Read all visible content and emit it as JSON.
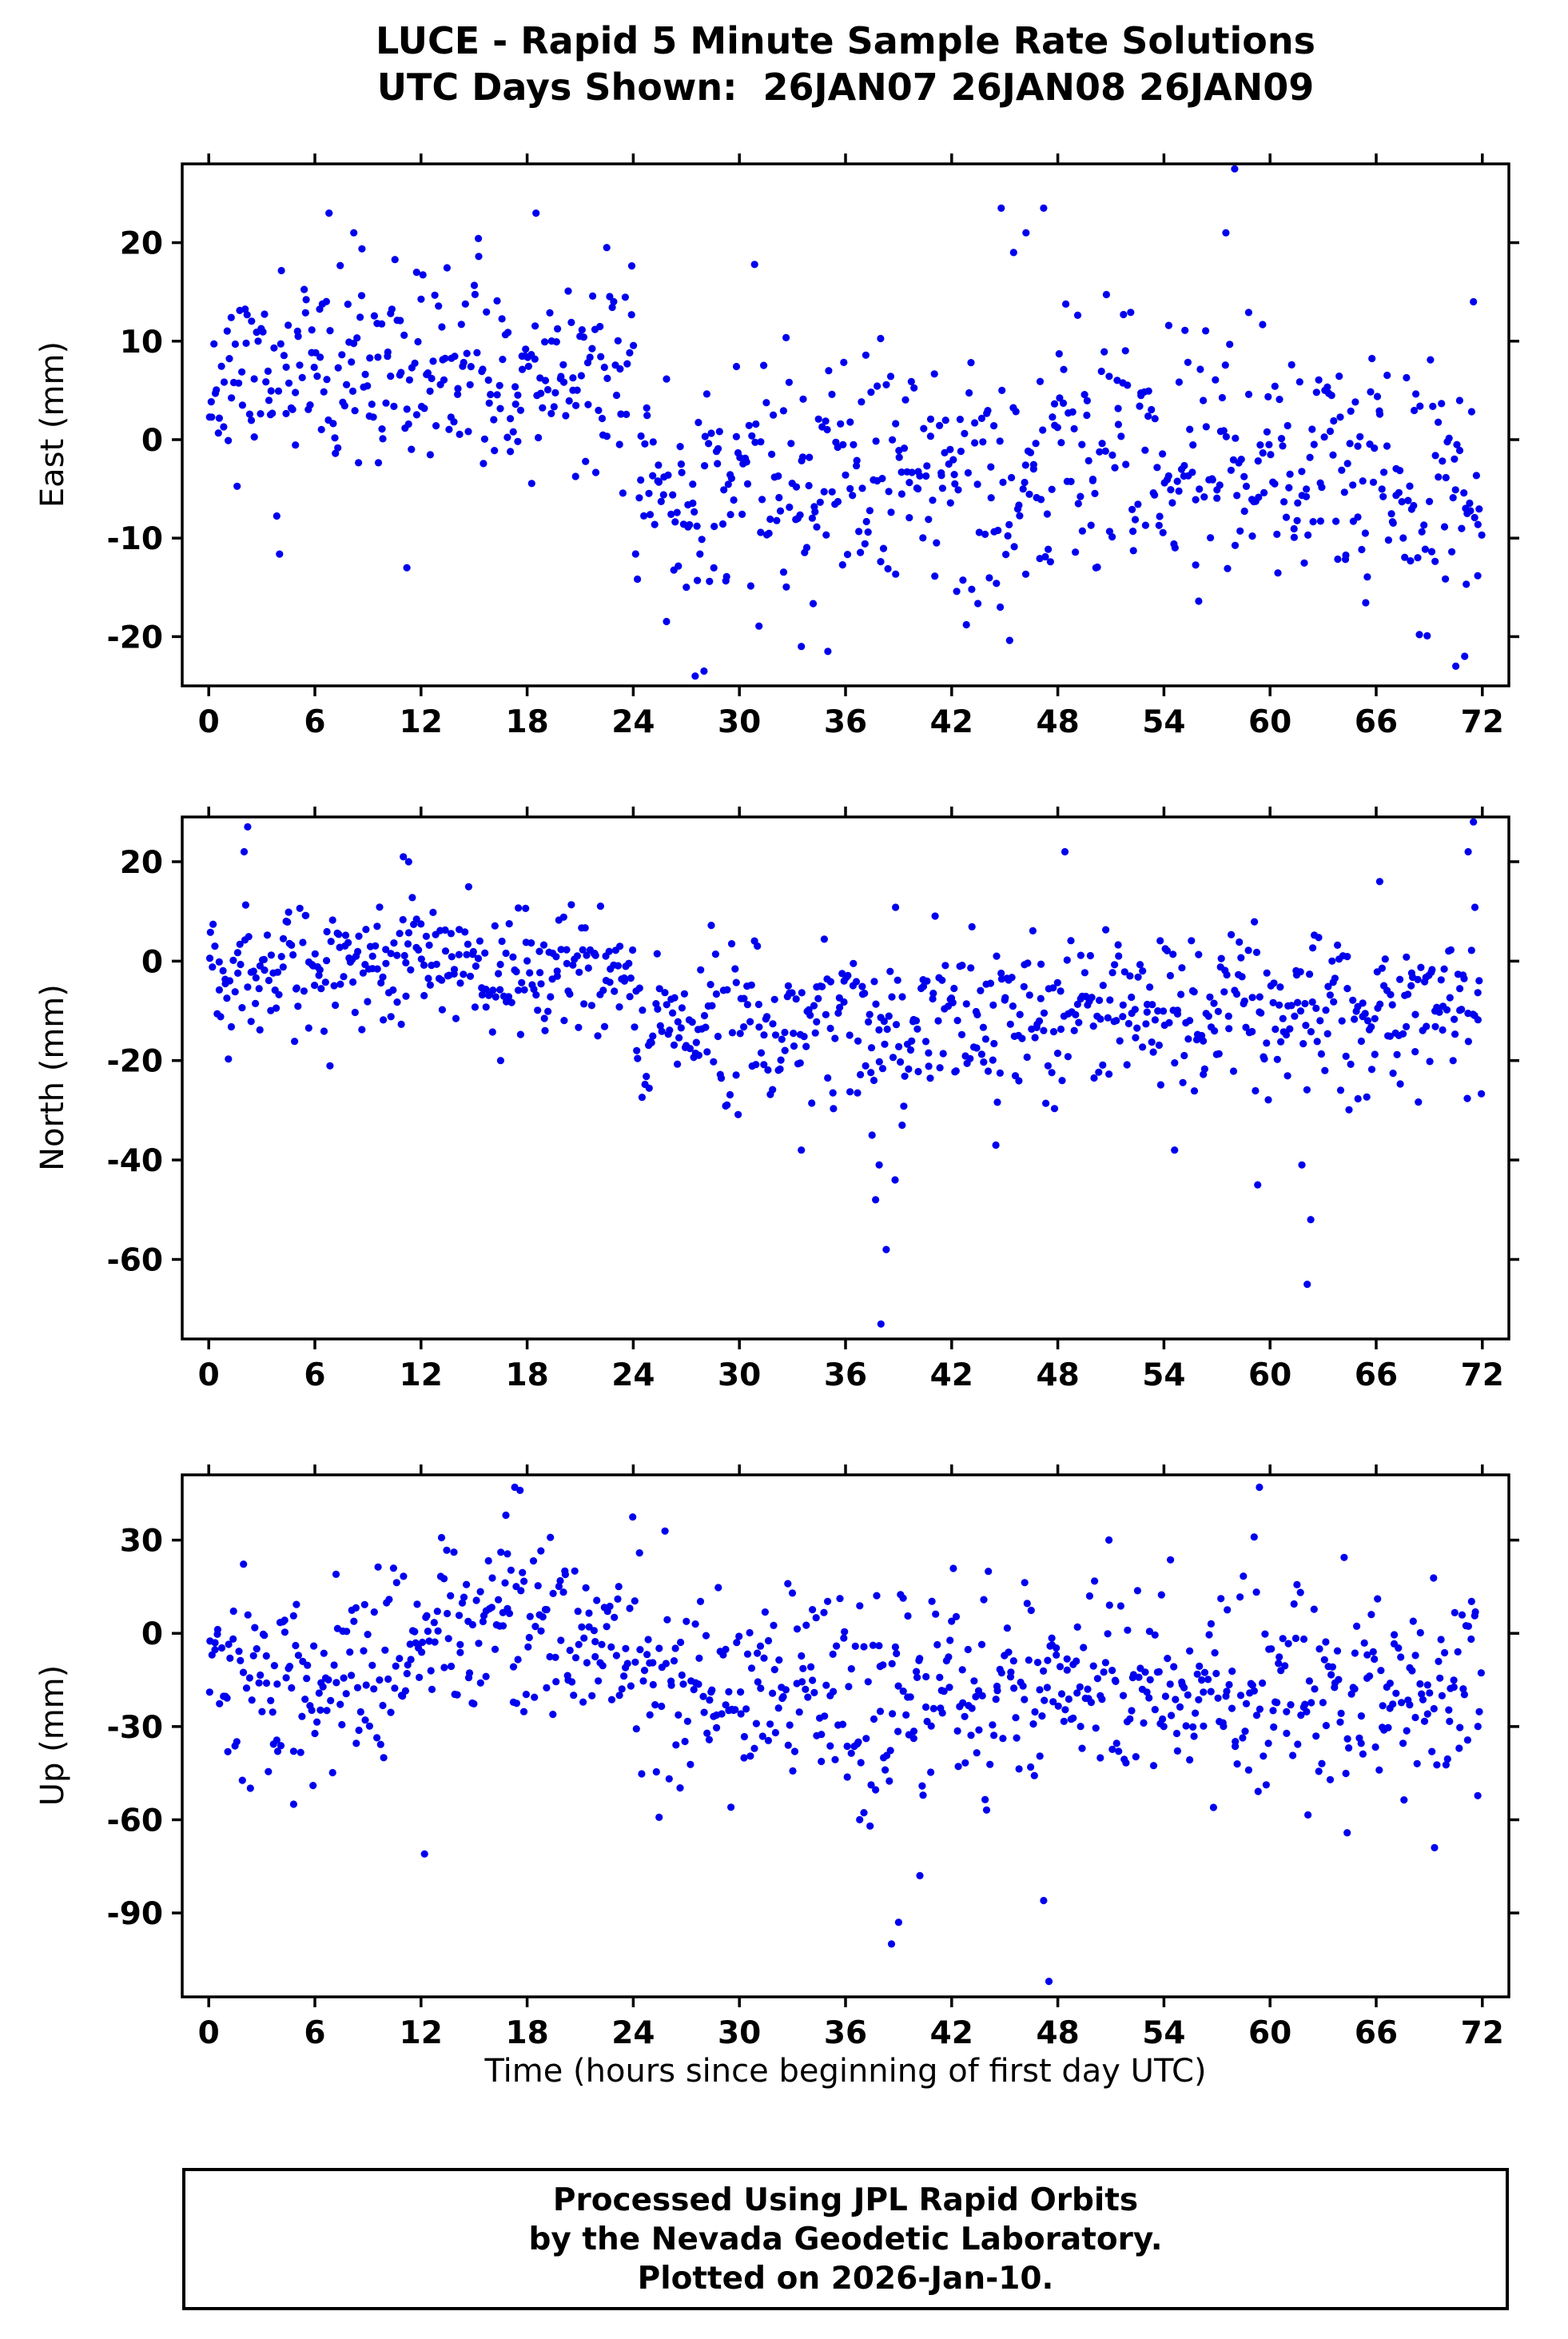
{
  "title": {
    "line1": "LUCE - Rapid 5 Minute Sample Rate Solutions",
    "line2": "UTC Days Shown:  26JAN07 26JAN08 26JAN09"
  },
  "xaxis_label": "Time (hours since beginning of first day UTC)",
  "footer": {
    "line1": "Processed Using JPL Rapid Orbits",
    "line2": "by the Nevada Geodetic Laboratory.",
    "line3": "Plotted on 2026-Jan-10."
  },
  "chart_data": {
    "type": "scatter",
    "marker_color": "#0000EE",
    "frame_color": "#000000",
    "x": {
      "lim": [
        -1.5,
        73.5
      ],
      "ticks": [
        0,
        6,
        12,
        18,
        24,
        30,
        36,
        42,
        48,
        54,
        60,
        66,
        72
      ]
    },
    "xlabel": "Time (hours since beginning of first day UTC)",
    "panels": [
      {
        "id": "east",
        "ylabel": "East (mm)",
        "ylim": [
          -25,
          28
        ],
        "yticks": [
          -20,
          -10,
          0,
          10,
          20
        ],
        "seed": 11,
        "segments": [
          {
            "x0": 0,
            "x1": 24,
            "n": 280,
            "mean": 6.5,
            "std": 4.8,
            "drift": 0,
            "min": -13,
            "max": 23
          },
          {
            "x0": 24,
            "x1": 48,
            "n": 280,
            "mean": -5,
            "std": 6.5,
            "drift": 0.05,
            "min": -24,
            "max": 20
          },
          {
            "x0": 48,
            "x1": 72,
            "n": 280,
            "mean": 1,
            "std": 6.5,
            "drift": -0.28,
            "min": -24,
            "max": 22
          }
        ],
        "outliers": [
          [
            6.8,
            23
          ],
          [
            8.2,
            21
          ],
          [
            11.2,
            -13
          ],
          [
            18.5,
            23
          ],
          [
            22.5,
            19.5
          ],
          [
            27.5,
            -24
          ],
          [
            28.0,
            -23.5
          ],
          [
            33.5,
            -21
          ],
          [
            35.0,
            -21.5
          ],
          [
            44.8,
            23.5
          ],
          [
            45.5,
            19
          ],
          [
            46.2,
            21
          ],
          [
            47.2,
            23.5
          ],
          [
            57.5,
            21
          ],
          [
            58.0,
            27.5
          ],
          [
            70.5,
            -23
          ],
          [
            71.0,
            -22
          ],
          [
            71.5,
            14
          ]
        ]
      },
      {
        "id": "north",
        "ylabel": "North (mm)",
        "ylim": [
          -76,
          29
        ],
        "yticks": [
          -60,
          -40,
          -20,
          0,
          20
        ],
        "seed": 22,
        "segments": [
          {
            "x0": 0,
            "x1": 24,
            "n": 280,
            "mean": -1,
            "std": 6,
            "drift": 0,
            "min": -22,
            "max": 16
          },
          {
            "x0": 24,
            "x1": 48,
            "n": 280,
            "mean": -13,
            "std": 8,
            "drift": 0,
            "min": -33,
            "max": 12
          },
          {
            "x0": 48,
            "x1": 72,
            "n": 280,
            "mean": -10,
            "std": 8,
            "drift": 0,
            "min": -33,
            "max": 14
          }
        ],
        "outliers": [
          [
            2.0,
            22
          ],
          [
            2.2,
            27
          ],
          [
            11.0,
            21
          ],
          [
            11.3,
            20
          ],
          [
            16.5,
            -20
          ],
          [
            33.5,
            -38
          ],
          [
            37.5,
            -35
          ],
          [
            37.7,
            -48
          ],
          [
            37.9,
            -41
          ],
          [
            38.0,
            -73
          ],
          [
            38.3,
            -58
          ],
          [
            38.8,
            -44
          ],
          [
            39.2,
            -33
          ],
          [
            44.5,
            -37
          ],
          [
            48.4,
            22
          ],
          [
            54.6,
            -38
          ],
          [
            59.3,
            -45
          ],
          [
            61.8,
            -41
          ],
          [
            62.1,
            -65
          ],
          [
            62.3,
            -52
          ],
          [
            66.2,
            16
          ],
          [
            71.2,
            22
          ],
          [
            71.5,
            28
          ]
        ]
      },
      {
        "id": "up",
        "ylabel": "Up (mm)",
        "ylim": [
          -117,
          51
        ],
        "yticks": [
          -90,
          -60,
          -30,
          0,
          30
        ],
        "seed": 33,
        "segments": [
          {
            "x0": 0,
            "x1": 24,
            "n": 280,
            "mean": -8,
            "std": 15,
            "drift": 0,
            "min": -62,
            "max": 38,
            "wave": {
              "amp": 9,
              "period": 24,
              "phase": 11
            }
          },
          {
            "x0": 24,
            "x1": 48,
            "n": 280,
            "mean": -18,
            "std": 17,
            "drift": 0,
            "min": -80,
            "max": 35
          },
          {
            "x0": 48,
            "x1": 72,
            "n": 280,
            "mean": -18,
            "std": 15,
            "drift": 0,
            "min": -70,
            "max": 32
          }
        ],
        "outliers": [
          [
            3.9,
            -38
          ],
          [
            4.8,
            -55
          ],
          [
            12.2,
            -71
          ],
          [
            16.8,
            38
          ],
          [
            17.3,
            47
          ],
          [
            17.6,
            46
          ],
          [
            36.8,
            -60
          ],
          [
            38.6,
            -100
          ],
          [
            39.0,
            -93
          ],
          [
            40.2,
            -78
          ],
          [
            47.2,
            -86
          ],
          [
            47.5,
            -112
          ],
          [
            59.4,
            47
          ],
          [
            59.1,
            31
          ],
          [
            69.3,
            -69
          ]
        ]
      }
    ]
  }
}
